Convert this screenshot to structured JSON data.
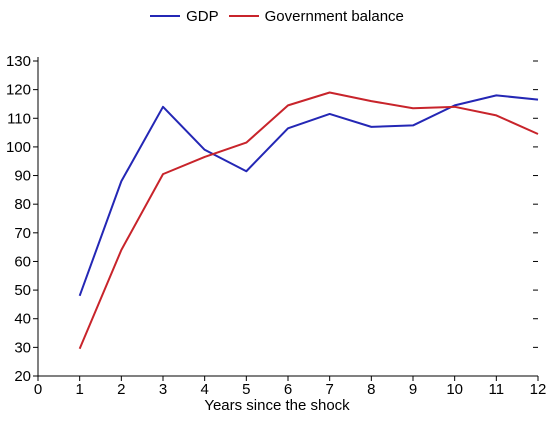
{
  "chart_data": {
    "type": "line",
    "x": [
      1,
      2,
      3,
      4,
      5,
      6,
      7,
      8,
      9,
      10,
      11,
      12
    ],
    "series": [
      {
        "name": "GDP",
        "color": "#2427b5",
        "values": [
          48,
          88,
          114,
          99,
          91.5,
          106.5,
          111.5,
          107,
          107.5,
          114.5,
          118,
          116.5
        ]
      },
      {
        "name": "Government balance",
        "color": "#c8242b",
        "values": [
          29.5,
          64,
          90.5,
          96.5,
          101.5,
          114.5,
          119,
          116,
          113.5,
          114,
          111,
          104.5
        ]
      }
    ],
    "xticks": [
      "0",
      "1",
      "2",
      "3",
      "4",
      "5",
      "6",
      "7",
      "8",
      "9",
      "10",
      "11",
      "12"
    ],
    "yticks": [
      "20",
      "30",
      "40",
      "50",
      "60",
      "70",
      "80",
      "90",
      "100",
      "110",
      "120",
      "130"
    ],
    "xlabel": "Years since the shock",
    "xlim": [
      0,
      12
    ],
    "ylim": [
      20,
      130
    ],
    "legend_position": "top-center",
    "grid": false
  }
}
